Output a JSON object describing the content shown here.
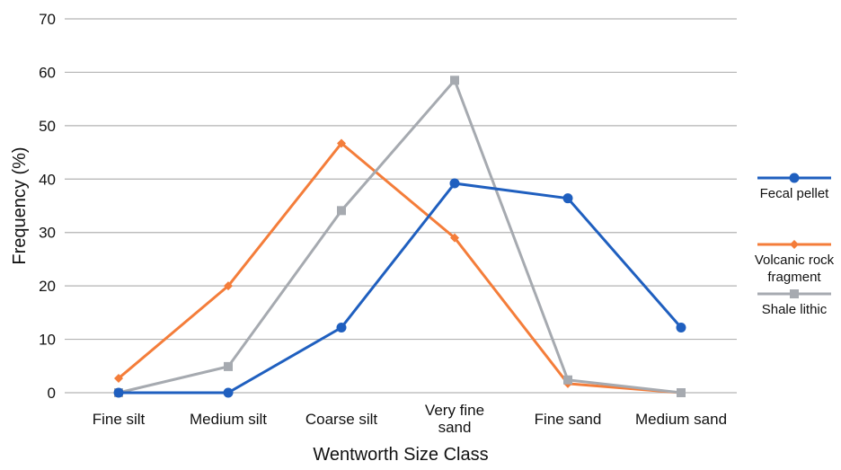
{
  "chart_data": {
    "type": "line",
    "categories": [
      "Fine silt",
      "Medium silt",
      "Coarse silt",
      "Very fine sand",
      "Fine sand",
      "Medium sand"
    ],
    "category_labels": [
      [
        "Fine silt"
      ],
      [
        "Medium silt"
      ],
      [
        "Coarse silt"
      ],
      [
        "Very fine",
        "sand"
      ],
      [
        "Fine sand"
      ],
      [
        "Medium sand"
      ]
    ],
    "series": [
      {
        "name": "Fecal pellet",
        "legend_lines": [
          "Fecal pellet"
        ],
        "color": "#1f5fbf",
        "marker": "circle",
        "values": [
          0,
          0,
          12.2,
          39.2,
          36.4,
          12.2
        ]
      },
      {
        "name": "Volcanic rock fragment",
        "legend_lines": [
          "Volcanic rock",
          "fragment"
        ],
        "color": "#f47d3a",
        "marker": "diamond",
        "values": [
          2.7,
          20,
          46.7,
          29,
          1.7,
          0
        ]
      },
      {
        "name": "Shale lithic",
        "legend_lines": [
          "Shale lithic"
        ],
        "color": "#a6aab0",
        "marker": "square",
        "values": [
          0,
          4.9,
          34.1,
          58.5,
          2.4,
          0
        ]
      }
    ],
    "xlabel": "Wentworth Size Class",
    "ylabel": "Frequency (%)",
    "ylim": [
      0,
      70
    ],
    "yticks": [
      0,
      10,
      20,
      30,
      40,
      50,
      60,
      70
    ],
    "grid": true,
    "legend_position": "right"
  }
}
